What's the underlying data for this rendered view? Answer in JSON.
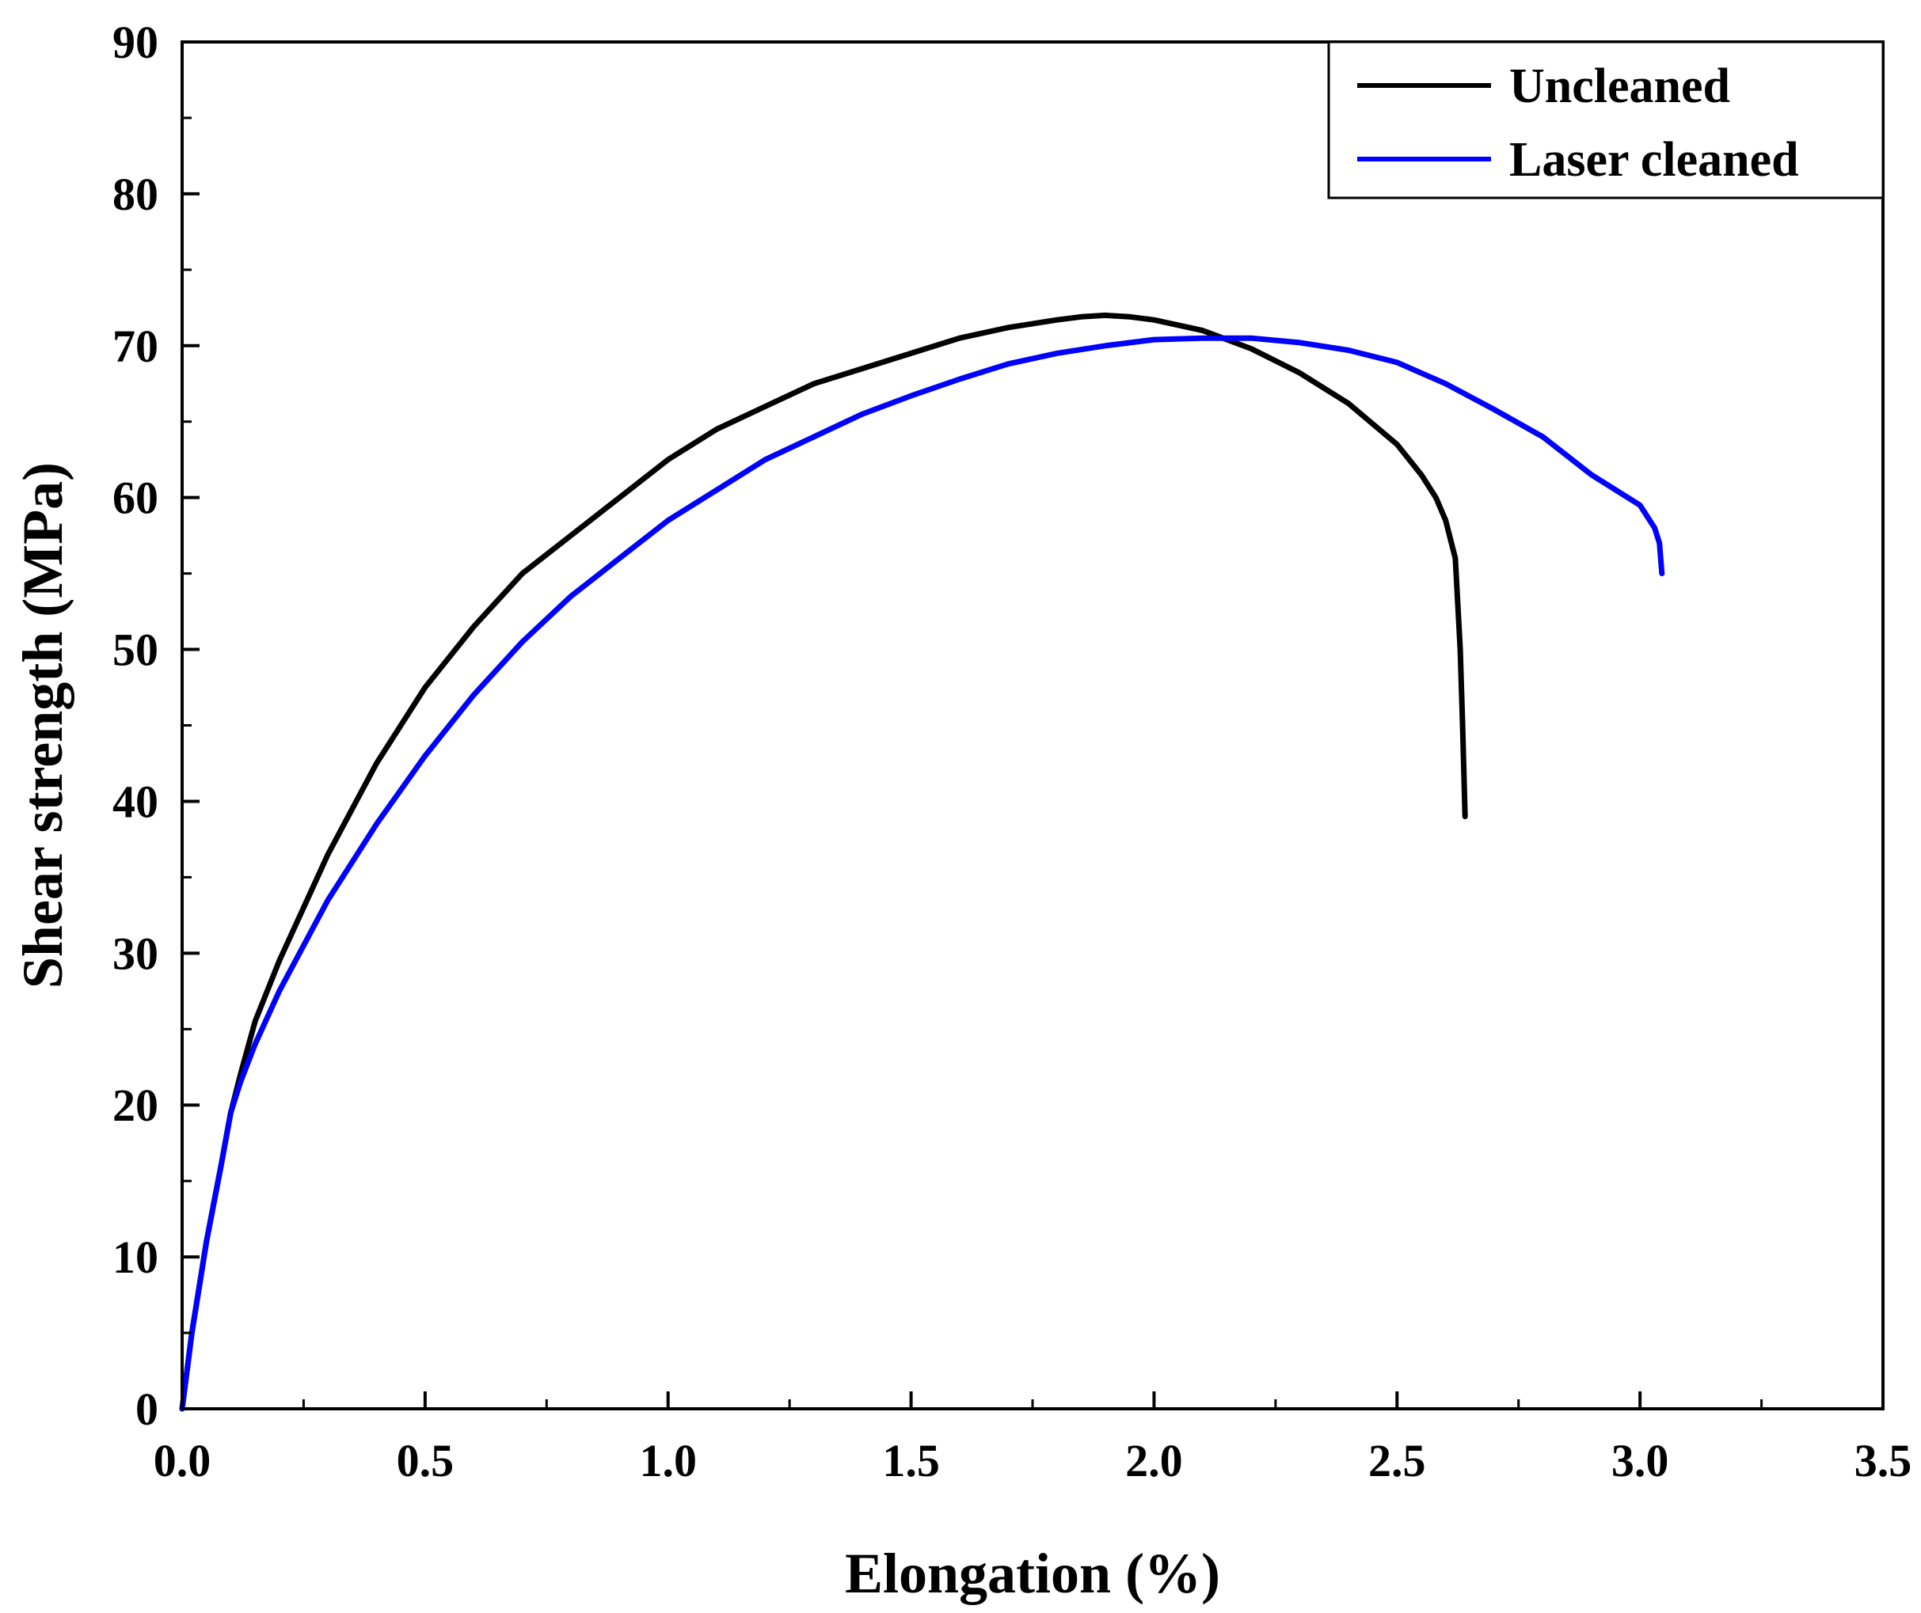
{
  "chart_data": {
    "type": "line",
    "title": "",
    "xlabel": "Elongation (%)",
    "ylabel": "Shear strength (MPa)",
    "xlim": [
      0,
      3.5
    ],
    "ylim": [
      0,
      90
    ],
    "x_ticks": [
      "0.0",
      "0.5",
      "1.0",
      "1.5",
      "2.0",
      "2.5",
      "3.0",
      "3.5"
    ],
    "y_ticks": [
      "0",
      "10",
      "20",
      "30",
      "40",
      "50",
      "60",
      "70",
      "80",
      "90"
    ],
    "grid": false,
    "legend_position": "top-right",
    "series": [
      {
        "name": "Uncleaned",
        "color": "#000000",
        "x": [
          0.0,
          0.02,
          0.05,
          0.08,
          0.1,
          0.12,
          0.15,
          0.2,
          0.25,
          0.3,
          0.35,
          0.4,
          0.5,
          0.6,
          0.7,
          0.8,
          0.9,
          1.0,
          1.1,
          1.2,
          1.3,
          1.4,
          1.5,
          1.6,
          1.7,
          1.8,
          1.85,
          1.9,
          1.95,
          2.0,
          2.1,
          2.2,
          2.3,
          2.4,
          2.5,
          2.55,
          2.58,
          2.6,
          2.62,
          2.625,
          2.63,
          2.635,
          2.64
        ],
        "y": [
          0,
          5,
          11,
          16,
          19.5,
          22,
          25.5,
          29.5,
          33,
          36.5,
          39.5,
          42.5,
          47.5,
          51.5,
          55,
          57.5,
          60,
          62.5,
          64.5,
          66,
          67.5,
          68.5,
          69.5,
          70.5,
          71.2,
          71.7,
          71.9,
          72,
          71.9,
          71.7,
          71,
          69.8,
          68.2,
          66.2,
          63.5,
          61.5,
          60,
          58.5,
          56,
          53,
          50,
          45,
          39
        ]
      },
      {
        "name": "Laser cleaned",
        "color": "#0000ff",
        "x": [
          0.0,
          0.02,
          0.05,
          0.08,
          0.1,
          0.12,
          0.15,
          0.2,
          0.25,
          0.3,
          0.35,
          0.4,
          0.5,
          0.6,
          0.7,
          0.8,
          0.9,
          1.0,
          1.1,
          1.2,
          1.3,
          1.4,
          1.5,
          1.6,
          1.7,
          1.8,
          1.9,
          2.0,
          2.1,
          2.2,
          2.3,
          2.4,
          2.5,
          2.6,
          2.7,
          2.8,
          2.9,
          2.95,
          3.0,
          3.03,
          3.04,
          3.045
        ],
        "y": [
          0,
          5,
          11,
          16,
          19.5,
          21.5,
          24,
          27.5,
          30.5,
          33.5,
          36,
          38.5,
          43,
          47,
          50.5,
          53.5,
          56,
          58.5,
          60.5,
          62.5,
          64,
          65.5,
          66.7,
          67.8,
          68.8,
          69.5,
          70,
          70.4,
          70.5,
          70.5,
          70.2,
          69.7,
          68.9,
          67.5,
          65.8,
          64,
          61.5,
          60.5,
          59.5,
          58,
          57,
          55
        ]
      }
    ]
  }
}
